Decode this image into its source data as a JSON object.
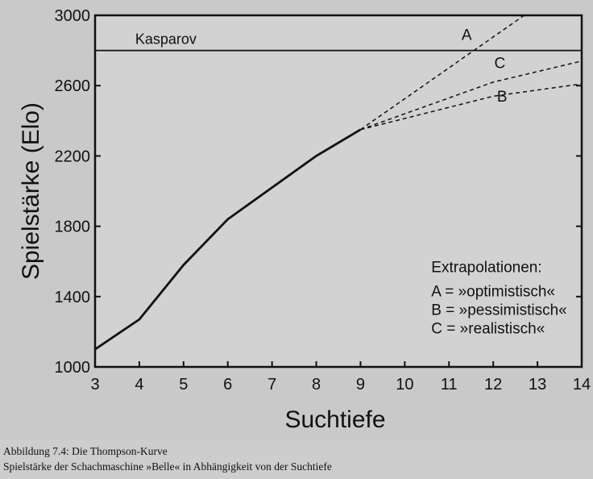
{
  "chart_data": {
    "type": "line",
    "xlabel": "Suchtiefe",
    "ylabel": "Spielstärke (Elo)",
    "xlim": [
      3,
      14
    ],
    "ylim": [
      1000,
      3000
    ],
    "x_ticks": [
      3,
      4,
      5,
      6,
      7,
      8,
      9,
      10,
      11,
      12,
      13,
      14
    ],
    "y_ticks": [
      1000,
      1400,
      1800,
      2200,
      2600,
      3000
    ],
    "series": [
      {
        "style": "solid",
        "x": [
          3,
          4,
          5,
          6,
          7,
          8,
          9
        ],
        "y": [
          1100,
          1270,
          1580,
          1840,
          2020,
          2200,
          2350
        ]
      },
      {
        "name": "A",
        "style": "dashed",
        "x": [
          9,
          12.7
        ],
        "y": [
          2350,
          3000
        ]
      },
      {
        "name": "B",
        "style": "dashed",
        "x": [
          9,
          12,
          14
        ],
        "y": [
          2350,
          2540,
          2610
        ]
      },
      {
        "name": "C",
        "style": "dashed",
        "x": [
          9,
          12,
          14
        ],
        "y": [
          2350,
          2620,
          2740
        ]
      }
    ],
    "reference_line": {
      "label": "Kasparov",
      "y": 2800
    },
    "series_labels": [
      "A",
      "B",
      "C"
    ],
    "legend": {
      "title": "Extrapolationen:",
      "entries": [
        "A = »optimistisch«",
        "B = »pessimistisch«",
        "C = »realistisch«"
      ],
      "placement": "bottom-right"
    },
    "grid": false
  },
  "caption": {
    "line1": "Abbildung 7.4: Die Thompson-Kurve",
    "line2": "Spielstärke der Schachmaschine »Belle« in Abhängigkeit von der Suchtiefe"
  },
  "colors": {
    "plot_background": "#d2d2d2",
    "line": "#111111",
    "page": "#c9c9c9"
  }
}
